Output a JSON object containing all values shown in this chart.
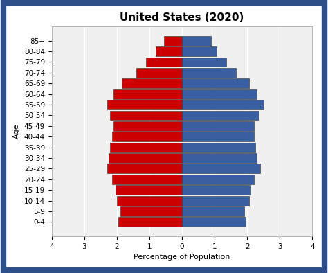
{
  "title": "United States (2020)",
  "xlabel": "Percentage of Population",
  "ylabel": "Age",
  "age_groups": [
    "0-4",
    "5-9",
    "10-14",
    "15-19",
    "20-24",
    "25-29",
    "30-34",
    "35-39",
    "40-44",
    "45-49",
    "50-54",
    "55-59",
    "60-64",
    "65-69",
    "70-74",
    "75-79",
    "80-84",
    "85+"
  ],
  "male": [
    1.95,
    1.9,
    2.0,
    2.05,
    2.15,
    2.3,
    2.25,
    2.2,
    2.15,
    2.1,
    2.2,
    2.3,
    2.1,
    1.85,
    1.4,
    1.1,
    0.8,
    0.55
  ],
  "female": [
    1.95,
    1.9,
    2.05,
    2.1,
    2.2,
    2.4,
    2.3,
    2.25,
    2.2,
    2.2,
    2.35,
    2.5,
    2.3,
    2.05,
    1.65,
    1.35,
    1.05,
    0.9
  ],
  "male_color": "#cc0000",
  "female_color": "#3a5fa0",
  "xlim": 4,
  "background_color": "#f0f0f0",
  "border_color": "#2e4f8a",
  "title_fontsize": 11,
  "label_fontsize": 8,
  "tick_fontsize": 7.5
}
